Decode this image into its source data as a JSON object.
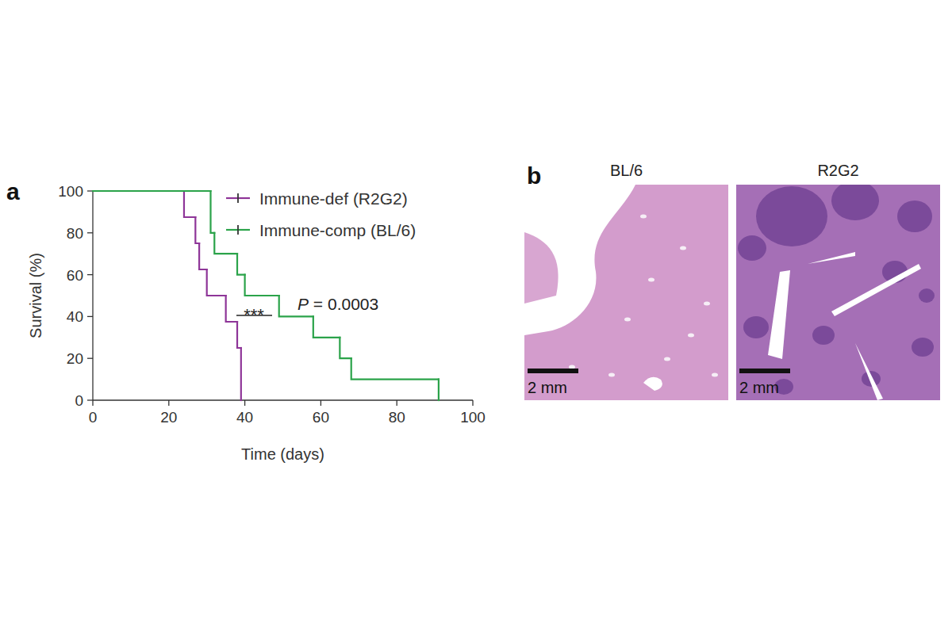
{
  "chart_data": {
    "type": "step",
    "panel_label": "a",
    "x_label": "Time (days)",
    "y_label": "Survival (%)",
    "series": [
      {
        "name": "Immune-def (R2G2)",
        "color": "#8e3598",
        "x": [
          0,
          24,
          27,
          28,
          30,
          35,
          38,
          39
        ],
        "values": [
          100,
          87.5,
          75,
          62.5,
          50,
          37.5,
          25,
          0
        ]
      },
      {
        "name": "Immune-comp (BL/6)",
        "color": "#2ba34a",
        "x": [
          0,
          31,
          32,
          38,
          40,
          49,
          58,
          65,
          68,
          91
        ],
        "values": [
          100,
          80,
          70,
          60,
          50,
          40,
          30,
          20,
          10,
          0
        ]
      }
    ],
    "annotations": [
      "***",
      "P = 0.0003"
    ],
    "xlim": [
      0,
      100
    ],
    "xticks": [
      0,
      20,
      40,
      60,
      80,
      100
    ],
    "ylim": [
      0,
      100
    ],
    "yticks": [
      0,
      20,
      40,
      60,
      80,
      100
    ],
    "grid": false,
    "legend": "top-right"
  },
  "figure": {
    "panel_label": "b",
    "images": [
      {
        "title": "BL/6",
        "scale_bar": "2 mm"
      },
      {
        "title": "R2G2",
        "scale_bar": "2 mm"
      }
    ]
  }
}
